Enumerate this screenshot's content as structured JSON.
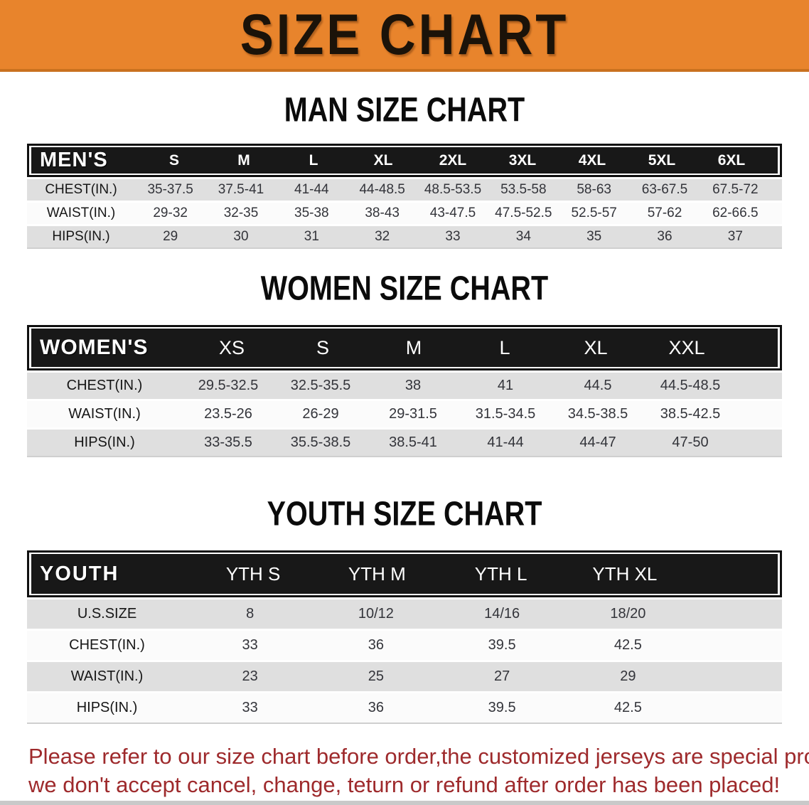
{
  "banner": {
    "title": "SIZE CHART",
    "bg_color": "#E8842C",
    "text_color": "#1B1309"
  },
  "sections": [
    {
      "heading": "MAN SIZE CHART",
      "table": {
        "header_label": "MEN'S",
        "sizes": [
          "S",
          "M",
          "L",
          "XL",
          "2XL",
          "3XL",
          "4XL",
          "5XL",
          "6XL"
        ],
        "rows": [
          {
            "label": "CHEST(IN.)",
            "values": [
              "35-37.5",
              "37.5-41",
              "41-44",
              "44-48.5",
              "48.5-53.5",
              "53.5-58",
              "58-63",
              "63-67.5",
              "67.5-72"
            ]
          },
          {
            "label": "WAIST(IN.)",
            "values": [
              "29-32",
              "32-35",
              "35-38",
              "38-43",
              "43-47.5",
              "47.5-52.5",
              "52.5-57",
              "57-62",
              "62-66.5"
            ]
          },
          {
            "label": "HIPS(IN.)",
            "values": [
              "29",
              "30",
              "31",
              "32",
              "33",
              "34",
              "35",
              "36",
              "37"
            ]
          }
        ]
      }
    },
    {
      "heading": "WOMEN SIZE CHART",
      "table": {
        "header_label": "WOMEN'S",
        "sizes": [
          "XS",
          "S",
          "M",
          "L",
          "XL",
          "XXL"
        ],
        "rows": [
          {
            "label": "CHEST(IN.)",
            "values": [
              "29.5-32.5",
              "32.5-35.5",
              "38",
              "41",
              "44.5",
              "44.5-48.5"
            ]
          },
          {
            "label": "WAIST(IN.)",
            "values": [
              "23.5-26",
              "26-29",
              "29-31.5",
              "31.5-34.5",
              "34.5-38.5",
              "38.5-42.5"
            ]
          },
          {
            "label": "HIPS(IN.)",
            "values": [
              "33-35.5",
              "35.5-38.5",
              "38.5-41",
              "41-44",
              "44-47",
              "47-50"
            ]
          }
        ]
      }
    },
    {
      "heading": "YOUTH SIZE CHART",
      "table": {
        "header_label": "YOUTH",
        "sizes": [
          "YTH S",
          "YTH M",
          "YTH L",
          "YTH XL"
        ],
        "rows": [
          {
            "label": "U.S.SIZE",
            "values": [
              "8",
              "10/12",
              "14/16",
              "18/20"
            ]
          },
          {
            "label": "CHEST(IN.)",
            "values": [
              "33",
              "36",
              "39.5",
              "42.5"
            ]
          },
          {
            "label": "WAIST(IN.)",
            "values": [
              "23",
              "25",
              "27",
              "29"
            ]
          },
          {
            "label": "HIPS(IN.)",
            "values": [
              "33",
              "36",
              "39.5",
              "42.5"
            ]
          }
        ]
      }
    }
  ],
  "disclaimer": {
    "line1": "Please refer to our size chart before order,the customized jerseys are special products,",
    "line2": "we don't accept cancel, change, teturn or refund after order has been placed!",
    "text_color": "#9E2A2C"
  }
}
